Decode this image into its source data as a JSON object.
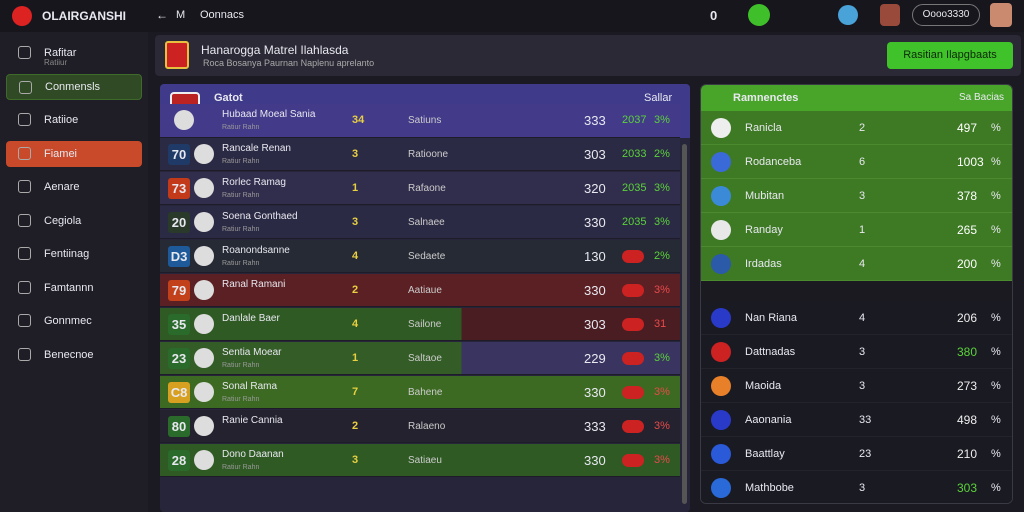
{
  "topbar": {
    "brand": "OLAIRGANSHI",
    "back": "←",
    "menu": "M",
    "section": "Oonnacs",
    "counter": "0",
    "coins": "Oooo3330"
  },
  "sidebar": {
    "items": [
      "Rafitar",
      "Conmensls",
      "Ratiioe",
      "Fiamei",
      "Aenare",
      "Cegiola",
      "Fentiinag",
      "Famtannn",
      "Gonnmec",
      "Benecnoe"
    ],
    "subtitle": "Ratiiur"
  },
  "header": {
    "title": "Hanarogga Matrel Ilahlasda",
    "subtitle": "Roca Bosanya Paurnan Naplenu aprelanto",
    "button": "Rasitian Ilapgbaats"
  },
  "table": {
    "head": {
      "title": "Gatot",
      "right": "Sallar"
    },
    "rows": [
      [
        "",
        "Hubaad Moeal Sania",
        "Ratiur Rahn",
        "34",
        "Satiuns",
        "333",
        "2037",
        "3%"
      ],
      [
        "70",
        "Rancale Renan",
        "Ratiur Rahn",
        "3",
        "Ratioone",
        "303",
        "2033",
        "2%"
      ],
      [
        "73",
        "Rorlec Ramag",
        "Ratiur Rahn",
        "1",
        "Rafaone",
        "320",
        "2035",
        "3%"
      ],
      [
        "20",
        "Soena Gonthaed",
        "Ratiur Rahn",
        "3",
        "Salnaee",
        "330",
        "2035",
        "3%"
      ],
      [
        "D3",
        "Roanondsanne",
        "Ratiur Rahn",
        "4",
        "Sedaete",
        "130",
        "",
        "2%"
      ],
      [
        "79",
        "Ranal Ramani",
        "",
        "2",
        "Aatiaue",
        "330",
        "",
        "3%"
      ],
      [
        "35",
        "Danlale Baer",
        "",
        "4",
        "Sailone",
        "303",
        "",
        "31"
      ],
      [
        "23",
        "Sentia Moear",
        "Ratiur Rahn",
        "1",
        "Saltaoe",
        "229",
        "",
        "3%"
      ],
      [
        "C8",
        "Sonal Rama",
        "Ratiur Rahn",
        "7",
        "Bahene",
        "330",
        "",
        "3%"
      ],
      [
        "80",
        "Ranie Cannia",
        "",
        "2",
        "Ralaeno",
        "333",
        "",
        "3%"
      ],
      [
        "28",
        "Dono Daanan",
        "Ratiur Rahn",
        "3",
        "Satiaeu",
        "330",
        "",
        "3%"
      ]
    ]
  },
  "standings": {
    "head": {
      "title": "Ramnenctes",
      "right": "Sa Bacias"
    },
    "rows": [
      [
        "Ranicla",
        "2",
        "497",
        "%"
      ],
      [
        "Rodanceba",
        "6",
        "1003",
        "%"
      ],
      [
        "Mubitan",
        "3",
        "378",
        "%"
      ],
      [
        "Randay",
        "1",
        "265",
        "%"
      ],
      [
        "Irdadas",
        "4",
        "200",
        "%"
      ],
      [
        "Nan Riana",
        "4",
        "206",
        "%"
      ],
      [
        "Dattnadas",
        "3",
        "380",
        "%"
      ],
      [
        "Maoida",
        "3",
        "273",
        "%"
      ],
      [
        "Aaonania",
        "33",
        "498",
        "%"
      ],
      [
        "Baattlay",
        "23",
        "210",
        "%"
      ],
      [
        "Mathbobe",
        "3",
        "303",
        "%"
      ]
    ]
  }
}
